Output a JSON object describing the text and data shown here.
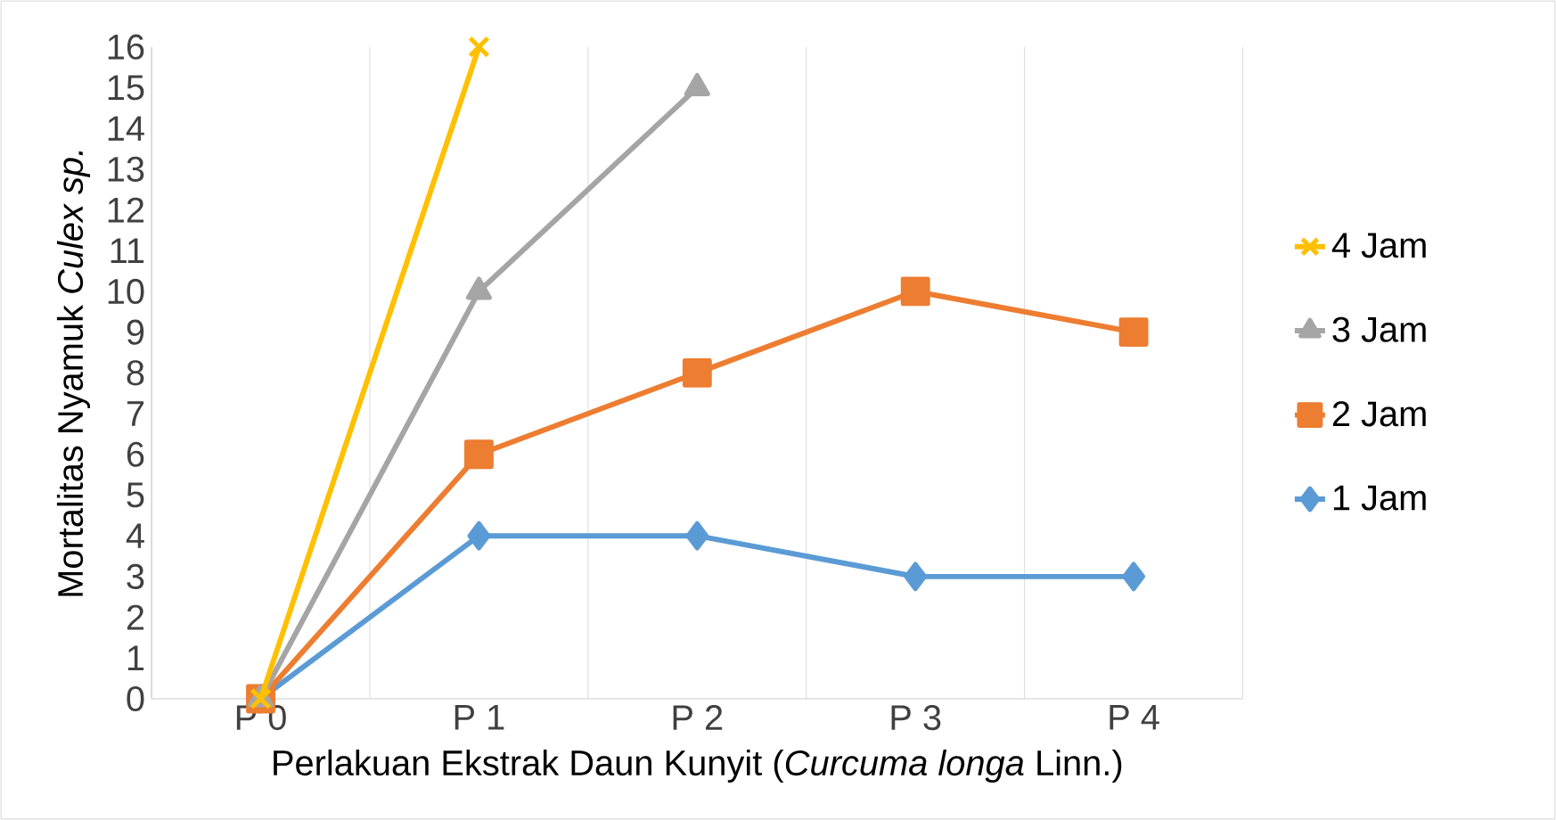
{
  "chart_data": {
    "type": "line",
    "xlabel": "Perlakuan Ekstrak Daun Kunyit (*Curcuma longa* Linn.)",
    "ylabel": "Mortalitas Nyamuk *Culex sp.*",
    "categories": [
      "P 0",
      "P 1",
      "P 2",
      "P 3",
      "P 4"
    ],
    "series": [
      {
        "name": "1 Jam",
        "color": "#5b9bd5",
        "marker": "diamond",
        "values": [
          0,
          4,
          4,
          3,
          3
        ]
      },
      {
        "name": "2 Jam",
        "color": "#ed7d31",
        "marker": "square",
        "values": [
          0,
          6,
          8,
          10,
          9
        ]
      },
      {
        "name": "3 Jam",
        "color": "#a5a5a5",
        "marker": "triangle",
        "values": [
          0,
          10,
          15,
          null,
          null
        ]
      },
      {
        "name": "4 Jam",
        "color": "#ffc000",
        "marker": "cross",
        "values": [
          0,
          16,
          null,
          null,
          null
        ]
      }
    ],
    "ylim": [
      0,
      16
    ],
    "yticks": [
      0,
      1,
      2,
      3,
      4,
      5,
      6,
      7,
      8,
      9,
      10,
      11,
      12,
      13,
      14,
      15,
      16
    ],
    "grid": "x",
    "legend": "right",
    "line_style": "solid"
  }
}
